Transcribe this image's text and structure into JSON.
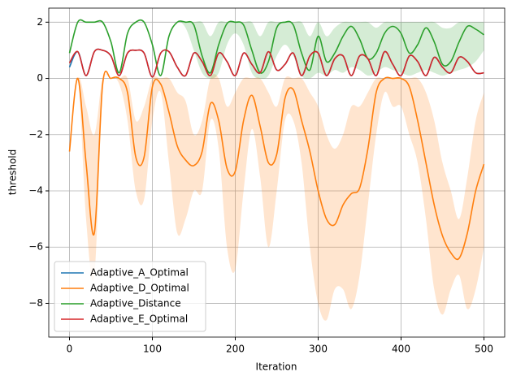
{
  "chart_data": {
    "type": "line",
    "xlabel": "Iteration",
    "ylabel": "threshold",
    "x": [
      0,
      10,
      20,
      30,
      40,
      50,
      60,
      70,
      80,
      90,
      100,
      110,
      120,
      130,
      140,
      150,
      160,
      170,
      180,
      190,
      200,
      210,
      220,
      230,
      240,
      250,
      260,
      270,
      280,
      290,
      300,
      310,
      320,
      330,
      340,
      350,
      360,
      370,
      380,
      390,
      400,
      410,
      420,
      430,
      440,
      450,
      460,
      470,
      480,
      490,
      500
    ],
    "xlim": [
      -25,
      525
    ],
    "xticks": [
      0,
      100,
      200,
      300,
      400,
      500
    ],
    "ylim": [
      -9.2,
      2.5
    ],
    "yticks": [
      -8,
      -6,
      -4,
      -2,
      0,
      2
    ],
    "grid": true,
    "legend": "lower left",
    "series": [
      {
        "name": "Adaptive_A_Optimal",
        "color": "#1f77b4",
        "values": [
          0.4,
          0.95,
          0.1,
          0.95,
          1,
          0.8,
          0.1,
          0.9,
          1,
          0.9,
          0.05,
          0.9,
          0.95,
          0.4,
          0.1,
          0.9,
          0.6,
          0.1,
          0.9,
          0.6,
          0.1,
          0.9,
          0.5,
          0.2,
          0.95,
          0.3,
          0.5,
          0.9,
          0.1,
          0.8,
          0.9,
          0.1,
          0.7,
          0.8,
          0.1,
          0.8,
          0.7,
          0.1,
          0.95,
          0.5,
          0.1,
          0.8,
          0.6,
          0.1,
          0.75,
          0.4,
          0.2,
          0.75,
          0.6,
          0.2,
          0.2
        ]
      },
      {
        "name": "Adaptive_D_Optimal",
        "color": "#ff7f0e",
        "values": [
          -2.6,
          0,
          -3.0,
          -5.5,
          -0.2,
          0,
          0,
          -0.5,
          -2.8,
          -2.8,
          -0.3,
          -0.2,
          -1.2,
          -2.4,
          -2.9,
          -3.1,
          -2.6,
          -0.9,
          -1.5,
          -3.2,
          -3.3,
          -1.5,
          -0.6,
          -1.7,
          -3.0,
          -2.7,
          -0.7,
          -0.4,
          -1.5,
          -2.6,
          -4.0,
          -5.0,
          -5.2,
          -4.5,
          -4.1,
          -3.9,
          -2.5,
          -0.5,
          0,
          0,
          0,
          -0.3,
          -1.5,
          -3.0,
          -4.5,
          -5.6,
          -6.2,
          -6.4,
          -5.5,
          -4.0,
          -3.05
        ],
        "band": {
          "lower": [
            -2.6,
            0,
            -5,
            -7,
            -0.5,
            0,
            -0.2,
            -1.5,
            -4,
            -4.3,
            -1.5,
            -0.5,
            -3,
            -5.5,
            -5,
            -4,
            -4,
            -1.5,
            -2.5,
            -6,
            -6.8,
            -4,
            -1.8,
            -3.5,
            -6,
            -4,
            -1.5,
            -1.5,
            -3,
            -6,
            -8,
            -8.6,
            -7.5,
            -7.5,
            -8.2,
            -7,
            -4.5,
            -2,
            -0.5,
            -1,
            -1,
            -2,
            -3,
            -5,
            -7.5,
            -8.4,
            -7.5,
            -7,
            -8.2,
            -7.5,
            -6
          ],
          "upper": [
            -2.6,
            0,
            -1,
            -2,
            0,
            0,
            0,
            0,
            -1.5,
            -1,
            0,
            0,
            0,
            -0.5,
            -0.8,
            -2,
            -1.5,
            0,
            0,
            -1,
            -0.5,
            0,
            0,
            0,
            -0.5,
            -1,
            0,
            0,
            0,
            -0.5,
            -1,
            -2,
            -2.5,
            -2,
            -1,
            -1,
            -0.5,
            0,
            0,
            0,
            0,
            0,
            0,
            -0.5,
            -1.5,
            -3,
            -4,
            -5,
            -3.5,
            -1.5,
            -0.5
          ]
        }
      },
      {
        "name": "Adaptive_Distance",
        "color": "#2ca02c",
        "values": [
          0.9,
          2,
          2,
          2,
          2,
          1.3,
          0.2,
          1.6,
          2,
          2,
          1.2,
          0.1,
          1.5,
          2,
          2,
          1.9,
          0.8,
          0.2,
          1.2,
          1.95,
          2,
          1.9,
          1.0,
          0.2,
          0.6,
          1.8,
          2,
          1.9,
          0.9,
          0.3,
          1.5,
          0.6,
          0.9,
          1.5,
          1.85,
          1.4,
          0.7,
          0.9,
          1.6,
          1.85,
          1.6,
          0.9,
          1.2,
          1.8,
          1.3,
          0.5,
          0.6,
          1.3,
          1.85,
          1.75,
          1.55
        ],
        "band": {
          "lower": [
            0.9,
            2,
            2,
            2,
            2,
            1.3,
            0.2,
            1.6,
            2,
            2,
            1.2,
            0.1,
            1.5,
            2,
            1.8,
            1.0,
            0.2,
            0,
            0.2,
            1.2,
            1.6,
            1.2,
            0.2,
            0,
            0.1,
            0.8,
            1.2,
            0.8,
            0.1,
            0,
            0.2,
            0.1,
            0.3,
            0.2,
            0.4,
            0.3,
            0.1,
            0.2,
            0.4,
            0.3,
            0.2,
            0.1,
            0.2,
            0.3,
            0.2,
            0.1,
            0.2,
            0.3,
            0.4,
            0.6,
            1.0
          ],
          "upper": [
            0.9,
            2,
            2,
            2,
            2,
            1.3,
            0.2,
            1.6,
            2,
            2,
            1.2,
            0.1,
            1.5,
            2,
            2,
            2,
            2,
            1.5,
            2,
            2,
            2,
            2,
            2,
            1.5,
            2,
            2,
            2,
            2,
            2,
            1.5,
            2,
            1.5,
            1.8,
            2,
            2,
            2,
            2,
            1.8,
            2,
            2,
            2,
            2,
            2,
            2,
            2,
            1.8,
            1.8,
            2,
            2,
            2,
            2
          ]
        }
      },
      {
        "name": "Adaptive_E_Optimal",
        "color": "#d62728",
        "values": [
          0.55,
          0.95,
          0.1,
          0.95,
          1,
          0.8,
          0.1,
          0.9,
          1,
          0.9,
          0.05,
          0.9,
          0.95,
          0.4,
          0.1,
          0.9,
          0.6,
          0.1,
          0.9,
          0.6,
          0.1,
          0.9,
          0.5,
          0.2,
          0.95,
          0.3,
          0.5,
          0.9,
          0.1,
          0.8,
          0.9,
          0.1,
          0.7,
          0.8,
          0.1,
          0.8,
          0.7,
          0.1,
          0.95,
          0.5,
          0.1,
          0.8,
          0.6,
          0.1,
          0.75,
          0.4,
          0.2,
          0.75,
          0.6,
          0.2,
          0.2
        ]
      }
    ]
  }
}
